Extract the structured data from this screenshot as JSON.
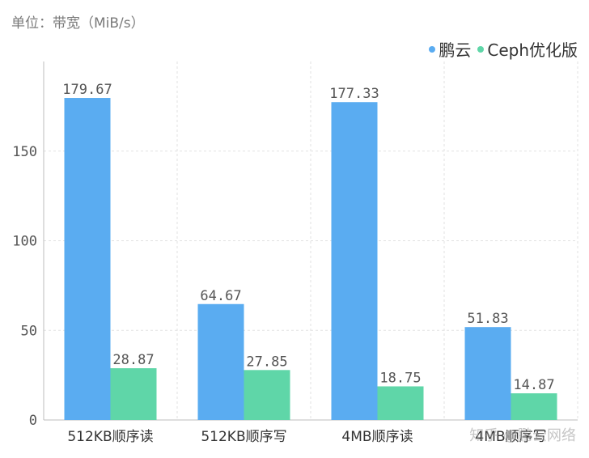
{
  "unit_label": "单位：带宽（MiB/s）",
  "watermark": "知乎 @鹏云网络",
  "colors": {
    "series0": "#5aacf1",
    "series1": "#5fd6a8",
    "axis": "#bdbdbd",
    "grid": "#e2e2e2",
    "text": "#555555"
  },
  "chart_data": {
    "type": "bar",
    "categories": [
      "512KB顺序读",
      "512KB顺序写",
      "4MB顺序读",
      "4MB顺序写"
    ],
    "series": [
      {
        "name": "鹏云",
        "values": [
          179.67,
          64.67,
          177.33,
          51.83
        ]
      },
      {
        "name": "Ceph优化版",
        "values": [
          28.87,
          27.85,
          18.75,
          14.87
        ]
      }
    ],
    "ylim": [
      0,
      200
    ],
    "yticks": [
      0,
      50,
      100,
      150
    ],
    "data_labels": true,
    "grid": true,
    "legend": "top-right"
  }
}
